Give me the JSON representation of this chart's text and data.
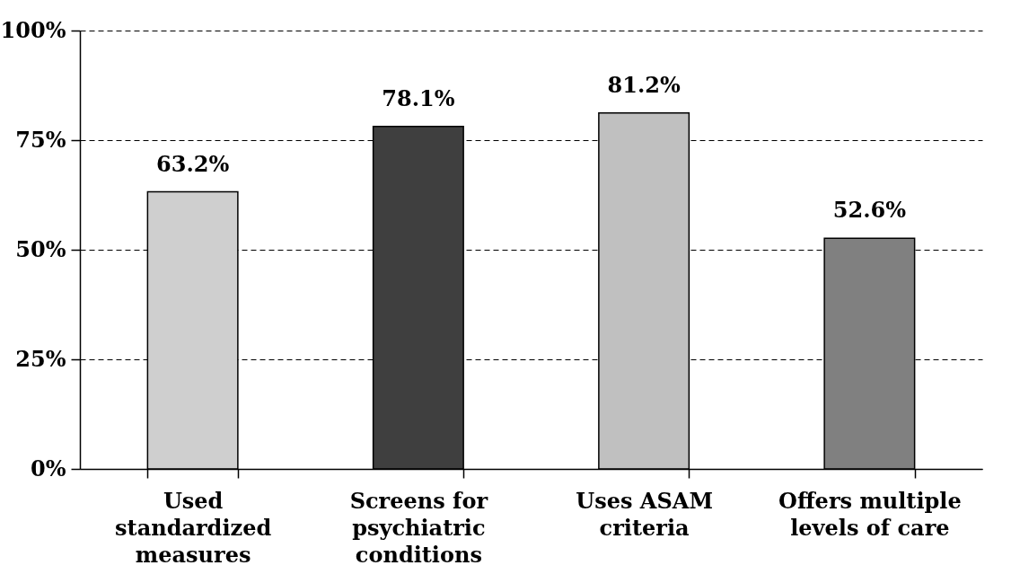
{
  "chart_data": {
    "type": "bar",
    "categories": [
      "Used standardized measures",
      "Screens for psychiatric conditions",
      "Uses ASAM criteria",
      "Offers multiple levels of care"
    ],
    "values": [
      63.2,
      78.1,
      81.2,
      52.6
    ],
    "colors": [
      "#cfcfcf",
      "#3f3f3f",
      "#c0c0c0",
      "#808080"
    ],
    "value_labels": [
      "63.2%",
      "78.1%",
      "81.2%",
      "52.6%"
    ],
    "ylim": [
      0,
      100
    ],
    "yticks": [
      {
        "value": 0,
        "label": "0%"
      },
      {
        "value": 25,
        "label": "25%"
      },
      {
        "value": 50,
        "label": "50%"
      },
      {
        "value": 75,
        "label": "75%"
      },
      {
        "value": 100,
        "label": "100%"
      }
    ],
    "grid": "y"
  }
}
